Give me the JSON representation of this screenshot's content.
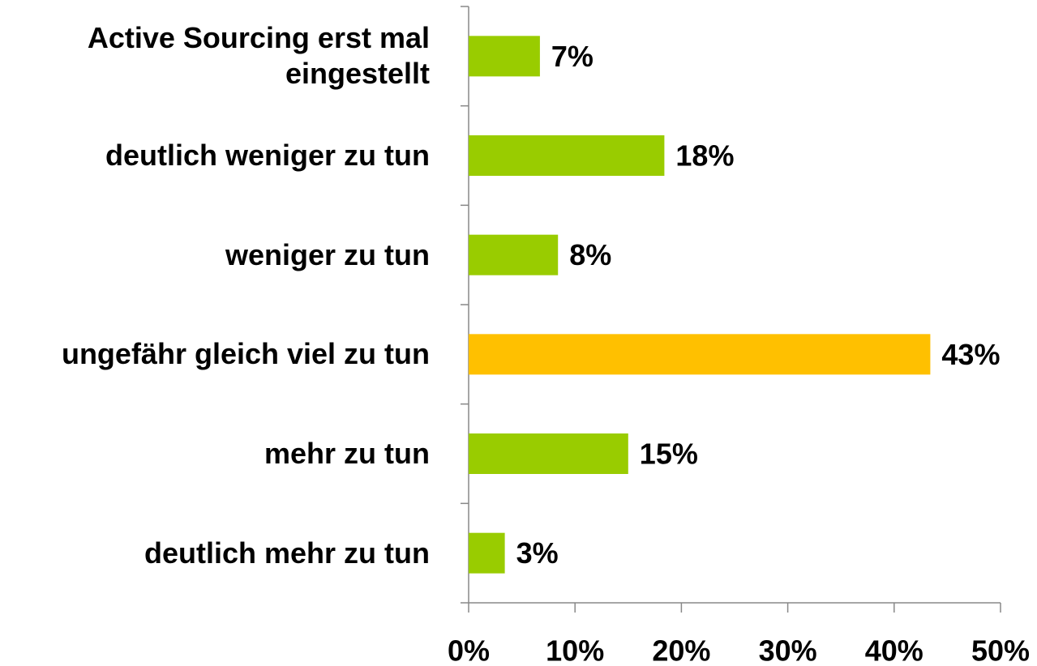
{
  "chart_data": {
    "type": "hbar",
    "categories": [
      "Active Sourcing erst mal eingestellt",
      "deutlich weniger zu tun",
      "weniger zu tun",
      "ungefähr gleich viel zu tun",
      "mehr zu tun",
      "deutlich mehr zu tun"
    ],
    "values": [
      6.7,
      18.4,
      8.4,
      43.4,
      15.0,
      3.4
    ],
    "value_labels": [
      "7%",
      "18%",
      "8%",
      "43%",
      "15%",
      "3%"
    ],
    "colors": [
      "#99cc00",
      "#99cc00",
      "#99cc00",
      "#ffc000",
      "#99cc00",
      "#99cc00"
    ],
    "xlim": [
      0,
      50
    ],
    "xticks": [
      {
        "value": 0,
        "label": "0%"
      },
      {
        "value": 10,
        "label": "10%"
      },
      {
        "value": 20,
        "label": "20%"
      },
      {
        "value": 30,
        "label": "30%"
      },
      {
        "value": 40,
        "label": "40%"
      },
      {
        "value": 50,
        "label": "50%"
      }
    ]
  }
}
